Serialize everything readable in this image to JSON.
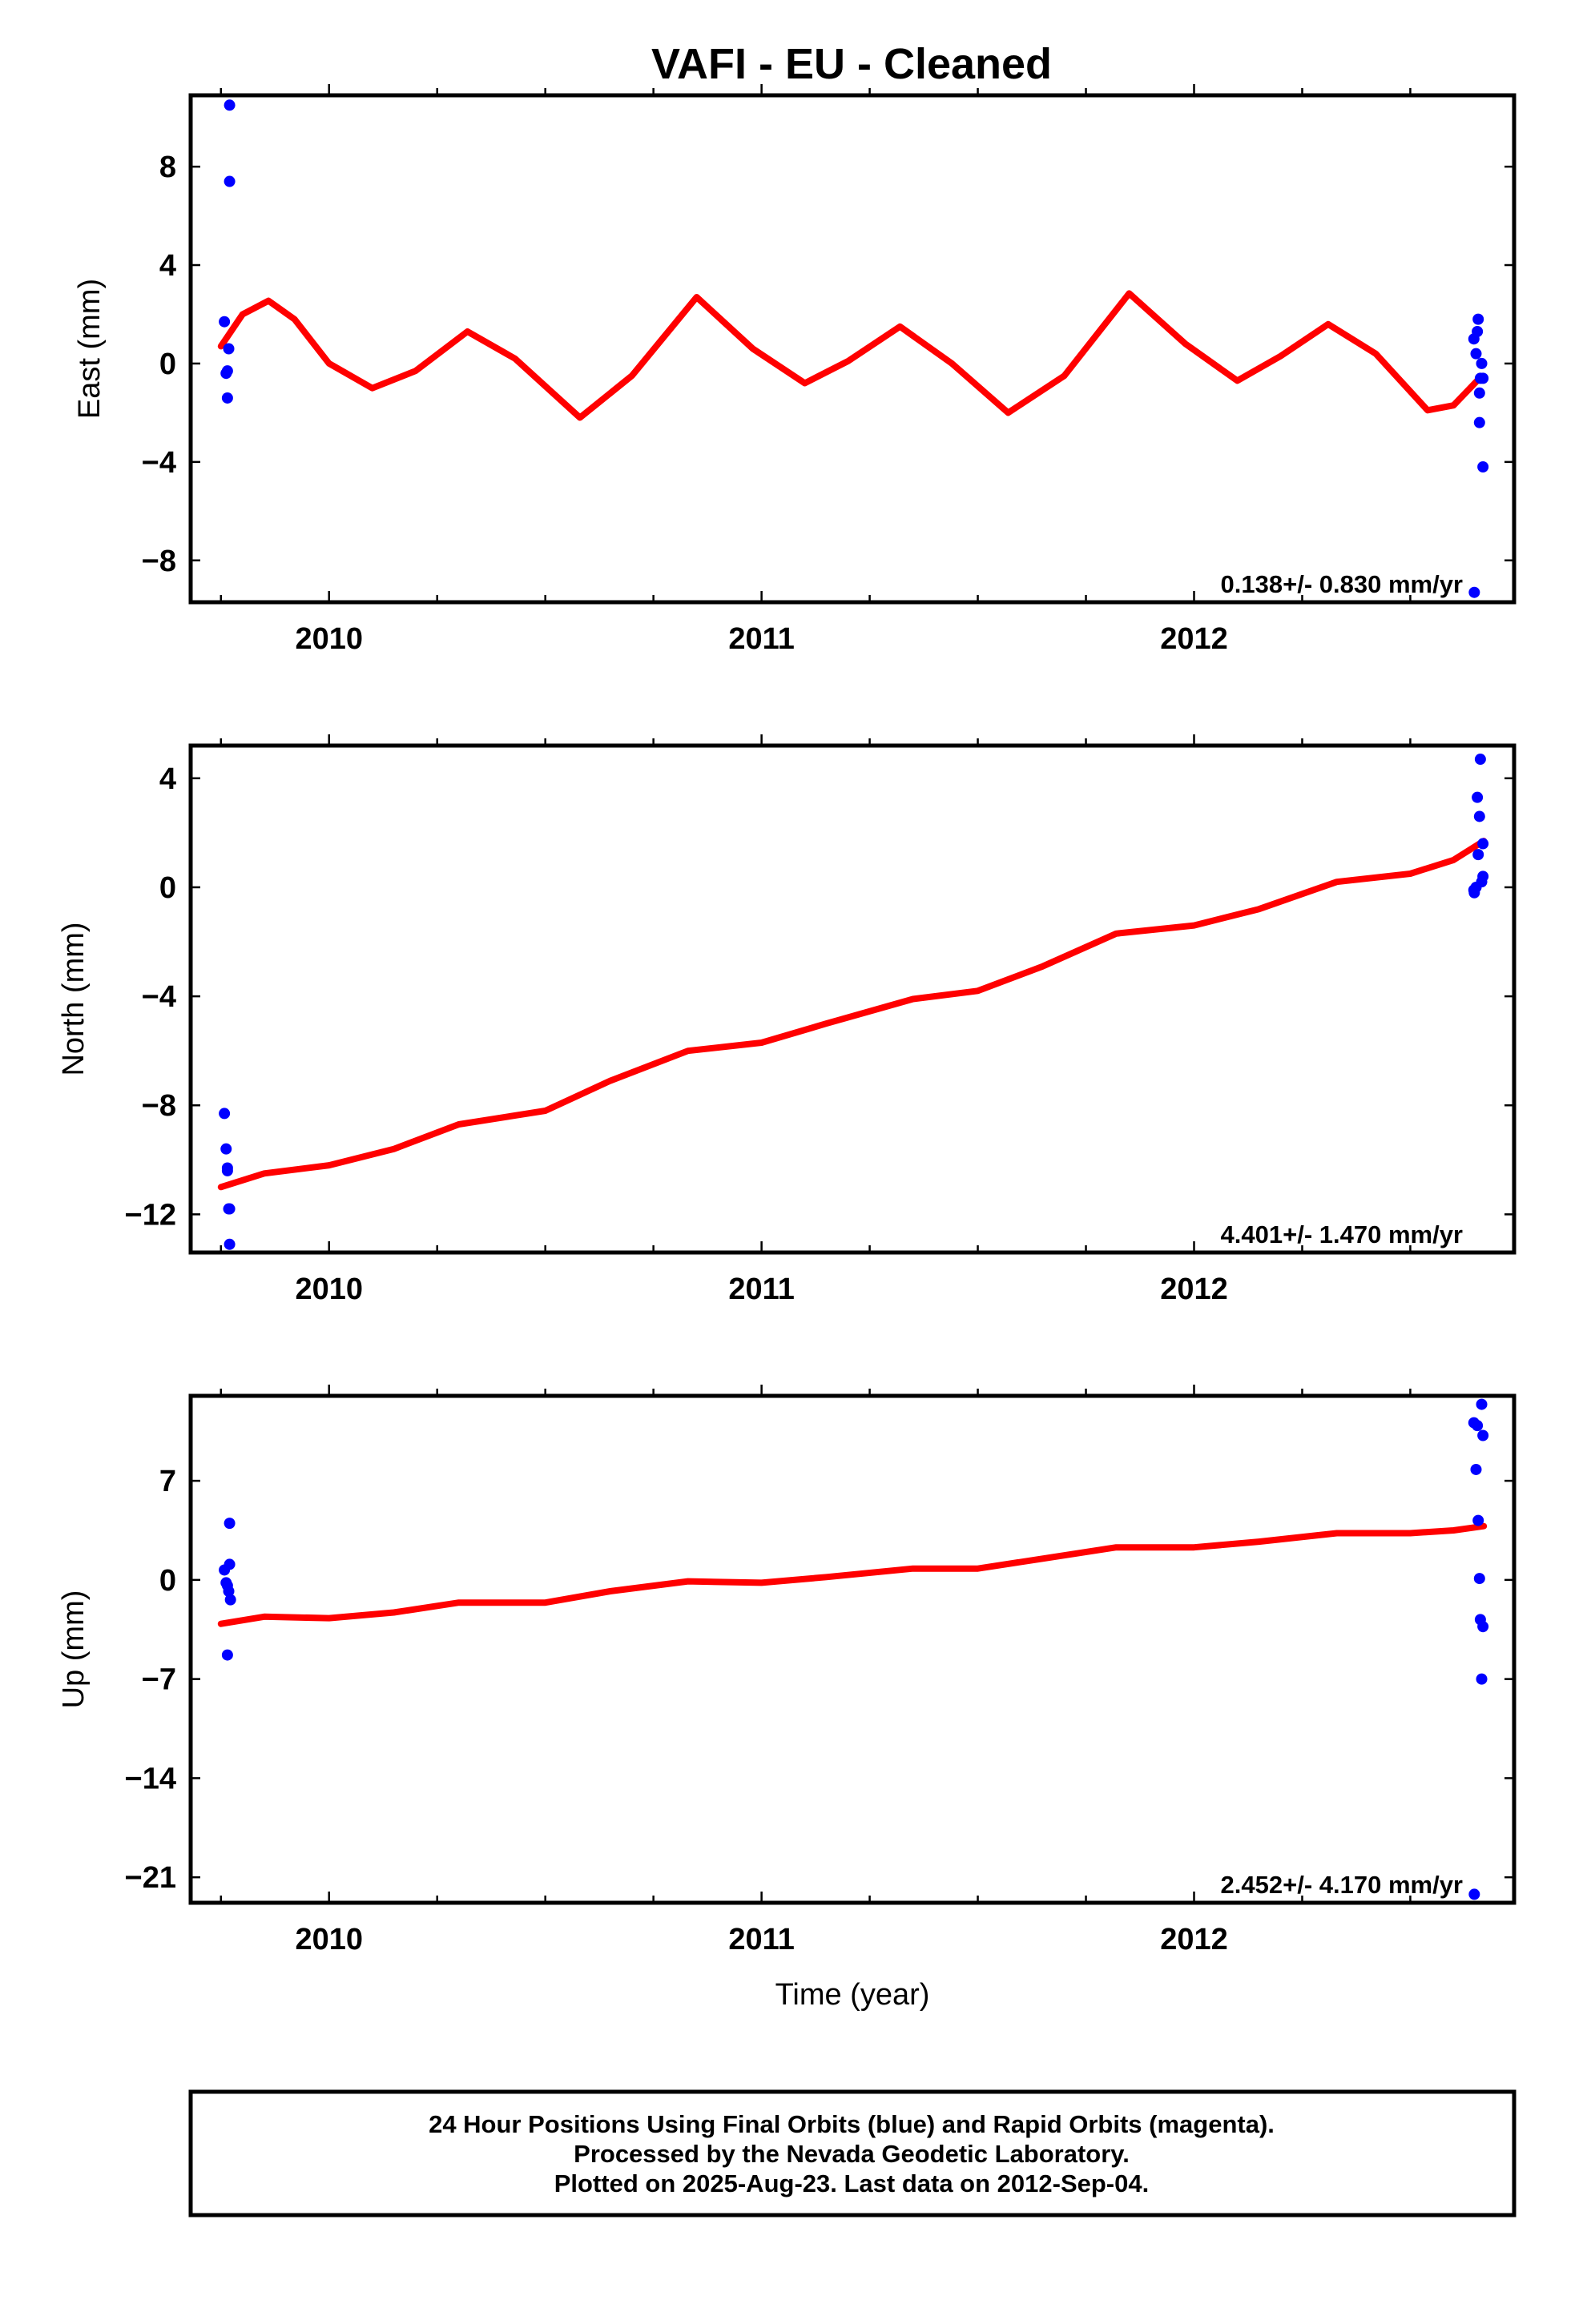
{
  "title": "VAFI  - EU - Cleaned",
  "colors": {
    "points": "#0000ff",
    "fit": "#ff0000",
    "axes": "#000000"
  },
  "footer": {
    "line1": "24 Hour Positions Using Final Orbits (blue) and Rapid Orbits (magenta).",
    "line2": "Processed by the Nevada Geodetic Laboratory.",
    "line3": "Plotted on 2025-Aug-23. Last data on 2012-Sep-04."
  },
  "chart_data": [
    {
      "type": "scatter",
      "ylabel": "East (mm)",
      "xlabel": "",
      "xlim": [
        2009.68,
        2012.74
      ],
      "ylim": [
        -9.7,
        10.9
      ],
      "yticks": [
        8,
        4,
        0,
        -4,
        -8
      ],
      "ytick_labels": [
        "8",
        "4",
        "0",
        "−4",
        "−8"
      ],
      "xticks": [
        2010,
        2011,
        2012
      ],
      "xtick_labels": [
        "2010",
        "2011",
        "2012"
      ],
      "rate_label": "0.138+/- 0.830 mm/yr",
      "points": [
        {
          "x": 2009.758,
          "y": 1.7
        },
        {
          "x": 2009.762,
          "y": -0.4
        },
        {
          "x": 2009.765,
          "y": -0.3
        },
        {
          "x": 2009.765,
          "y": -1.4
        },
        {
          "x": 2009.768,
          "y": 0.6
        },
        {
          "x": 2009.77,
          "y": 10.5
        },
        {
          "x": 2009.77,
          "y": 7.4
        },
        {
          "x": 2012.647,
          "y": 1.0
        },
        {
          "x": 2012.652,
          "y": 0.4
        },
        {
          "x": 2012.657,
          "y": 1.8
        },
        {
          "x": 2012.655,
          "y": 1.3
        },
        {
          "x": 2012.66,
          "y": -1.2
        },
        {
          "x": 2012.662,
          "y": -0.6
        },
        {
          "x": 2012.665,
          "y": 0.0
        },
        {
          "x": 2012.66,
          "y": -2.4
        },
        {
          "x": 2012.668,
          "y": -0.6
        },
        {
          "x": 2012.668,
          "y": -4.2
        },
        {
          "x": 2012.648,
          "y": -9.3
        }
      ],
      "fit_line": [
        {
          "x": 2009.75,
          "y": 0.7
        },
        {
          "x": 2009.8,
          "y": 2.0
        },
        {
          "x": 2009.86,
          "y": 2.55
        },
        {
          "x": 2009.92,
          "y": 1.8
        },
        {
          "x": 2010.0,
          "y": 0.0
        },
        {
          "x": 2010.1,
          "y": -1.0
        },
        {
          "x": 2010.2,
          "y": -0.3
        },
        {
          "x": 2010.32,
          "y": 1.3
        },
        {
          "x": 2010.43,
          "y": 0.2
        },
        {
          "x": 2010.58,
          "y": -2.2
        },
        {
          "x": 2010.7,
          "y": -0.5
        },
        {
          "x": 2010.85,
          "y": 2.7
        },
        {
          "x": 2010.98,
          "y": 0.6
        },
        {
          "x": 2011.1,
          "y": -0.8
        },
        {
          "x": 2011.2,
          "y": 0.1
        },
        {
          "x": 2011.32,
          "y": 1.5
        },
        {
          "x": 2011.44,
          "y": 0.0
        },
        {
          "x": 2011.57,
          "y": -2.0
        },
        {
          "x": 2011.7,
          "y": -0.5
        },
        {
          "x": 2011.85,
          "y": 2.85
        },
        {
          "x": 2011.98,
          "y": 0.8
        },
        {
          "x": 2012.1,
          "y": -0.7
        },
        {
          "x": 2012.2,
          "y": 0.3
        },
        {
          "x": 2012.31,
          "y": 1.6
        },
        {
          "x": 2012.42,
          "y": 0.4
        },
        {
          "x": 2012.54,
          "y": -1.9
        },
        {
          "x": 2012.6,
          "y": -1.7
        },
        {
          "x": 2012.66,
          "y": -0.6
        }
      ]
    },
    {
      "type": "scatter",
      "ylabel": "North (mm)",
      "xlabel": "",
      "xlim": [
        2009.68,
        2012.74
      ],
      "ylim": [
        -13.4,
        5.2
      ],
      "yticks": [
        4,
        0,
        -4,
        -8,
        -12
      ],
      "ytick_labels": [
        "4",
        "0",
        "−4",
        "−8",
        "−12"
      ],
      "xticks": [
        2010,
        2011,
        2012
      ],
      "xtick_labels": [
        "2010",
        "2011",
        "2012"
      ],
      "rate_label": "4.401+/- 1.470 mm/yr",
      "points": [
        {
          "x": 2009.758,
          "y": -8.3
        },
        {
          "x": 2009.762,
          "y": -9.6
        },
        {
          "x": 2009.765,
          "y": -10.3
        },
        {
          "x": 2009.765,
          "y": -10.4
        },
        {
          "x": 2009.768,
          "y": -11.8
        },
        {
          "x": 2009.77,
          "y": -11.8
        },
        {
          "x": 2009.77,
          "y": -13.1
        },
        {
          "x": 2012.647,
          "y": -0.1
        },
        {
          "x": 2012.652,
          "y": 0.0
        },
        {
          "x": 2012.655,
          "y": 3.3
        },
        {
          "x": 2012.657,
          "y": 1.2
        },
        {
          "x": 2012.66,
          "y": 2.6
        },
        {
          "x": 2012.662,
          "y": 4.7
        },
        {
          "x": 2012.665,
          "y": 0.2
        },
        {
          "x": 2012.668,
          "y": 1.6
        },
        {
          "x": 2012.668,
          "y": 0.4
        },
        {
          "x": 2012.648,
          "y": -0.2
        }
      ],
      "fit_line": [
        {
          "x": 2009.75,
          "y": -11.0
        },
        {
          "x": 2009.85,
          "y": -10.5
        },
        {
          "x": 2010.0,
          "y": -10.2
        },
        {
          "x": 2010.15,
          "y": -9.6
        },
        {
          "x": 2010.3,
          "y": -8.7
        },
        {
          "x": 2010.5,
          "y": -8.2
        },
        {
          "x": 2010.65,
          "y": -7.1
        },
        {
          "x": 2010.83,
          "y": -6.0
        },
        {
          "x": 2011.0,
          "y": -5.7
        },
        {
          "x": 2011.15,
          "y": -5.0
        },
        {
          "x": 2011.35,
          "y": -4.1
        },
        {
          "x": 2011.5,
          "y": -3.8
        },
        {
          "x": 2011.65,
          "y": -2.9
        },
        {
          "x": 2011.82,
          "y": -1.7
        },
        {
          "x": 2012.0,
          "y": -1.4
        },
        {
          "x": 2012.15,
          "y": -0.8
        },
        {
          "x": 2012.33,
          "y": 0.2
        },
        {
          "x": 2012.5,
          "y": 0.5
        },
        {
          "x": 2012.6,
          "y": 1.0
        },
        {
          "x": 2012.67,
          "y": 1.7
        }
      ]
    },
    {
      "type": "scatter",
      "ylabel": "Up (mm)",
      "xlabel": "Time (year)",
      "xlim": [
        2009.68,
        2012.74
      ],
      "ylim": [
        -22.8,
        13.0
      ],
      "yticks": [
        7,
        0,
        -7,
        -14,
        -21
      ],
      "ytick_labels": [
        "7",
        "0",
        "−7",
        "−14",
        "−21"
      ],
      "xticks": [
        2010,
        2011,
        2012
      ],
      "xtick_labels": [
        "2010",
        "2011",
        "2012"
      ],
      "rate_label": "2.452+/- 4.170 mm/yr",
      "points": [
        {
          "x": 2009.758,
          "y": 0.7
        },
        {
          "x": 2009.762,
          "y": -0.2
        },
        {
          "x": 2009.765,
          "y": -0.4
        },
        {
          "x": 2009.765,
          "y": -5.3
        },
        {
          "x": 2009.768,
          "y": -0.8
        },
        {
          "x": 2009.77,
          "y": 4.0
        },
        {
          "x": 2009.77,
          "y": 1.1
        },
        {
          "x": 2009.772,
          "y": -1.4
        },
        {
          "x": 2012.647,
          "y": 11.1
        },
        {
          "x": 2012.652,
          "y": 7.8
        },
        {
          "x": 2012.655,
          "y": 10.9
        },
        {
          "x": 2012.657,
          "y": 4.2
        },
        {
          "x": 2012.66,
          "y": 0.1
        },
        {
          "x": 2012.662,
          "y": -2.8
        },
        {
          "x": 2012.665,
          "y": 12.4
        },
        {
          "x": 2012.668,
          "y": 10.2
        },
        {
          "x": 2012.668,
          "y": -3.3
        },
        {
          "x": 2012.665,
          "y": -7.0
        },
        {
          "x": 2012.648,
          "y": -22.2
        }
      ],
      "fit_line": [
        {
          "x": 2009.75,
          "y": -3.1
        },
        {
          "x": 2009.85,
          "y": -2.6
        },
        {
          "x": 2010.0,
          "y": -2.7
        },
        {
          "x": 2010.15,
          "y": -2.3
        },
        {
          "x": 2010.3,
          "y": -1.6
        },
        {
          "x": 2010.5,
          "y": -1.6
        },
        {
          "x": 2010.65,
          "y": -0.8
        },
        {
          "x": 2010.83,
          "y": -0.1
        },
        {
          "x": 2011.0,
          "y": -0.2
        },
        {
          "x": 2011.15,
          "y": 0.2
        },
        {
          "x": 2011.35,
          "y": 0.8
        },
        {
          "x": 2011.5,
          "y": 0.8
        },
        {
          "x": 2011.65,
          "y": 1.5
        },
        {
          "x": 2011.82,
          "y": 2.3
        },
        {
          "x": 2012.0,
          "y": 2.3
        },
        {
          "x": 2012.15,
          "y": 2.7
        },
        {
          "x": 2012.33,
          "y": 3.3
        },
        {
          "x": 2012.5,
          "y": 3.3
        },
        {
          "x": 2012.6,
          "y": 3.5
        },
        {
          "x": 2012.67,
          "y": 3.8
        }
      ]
    }
  ]
}
